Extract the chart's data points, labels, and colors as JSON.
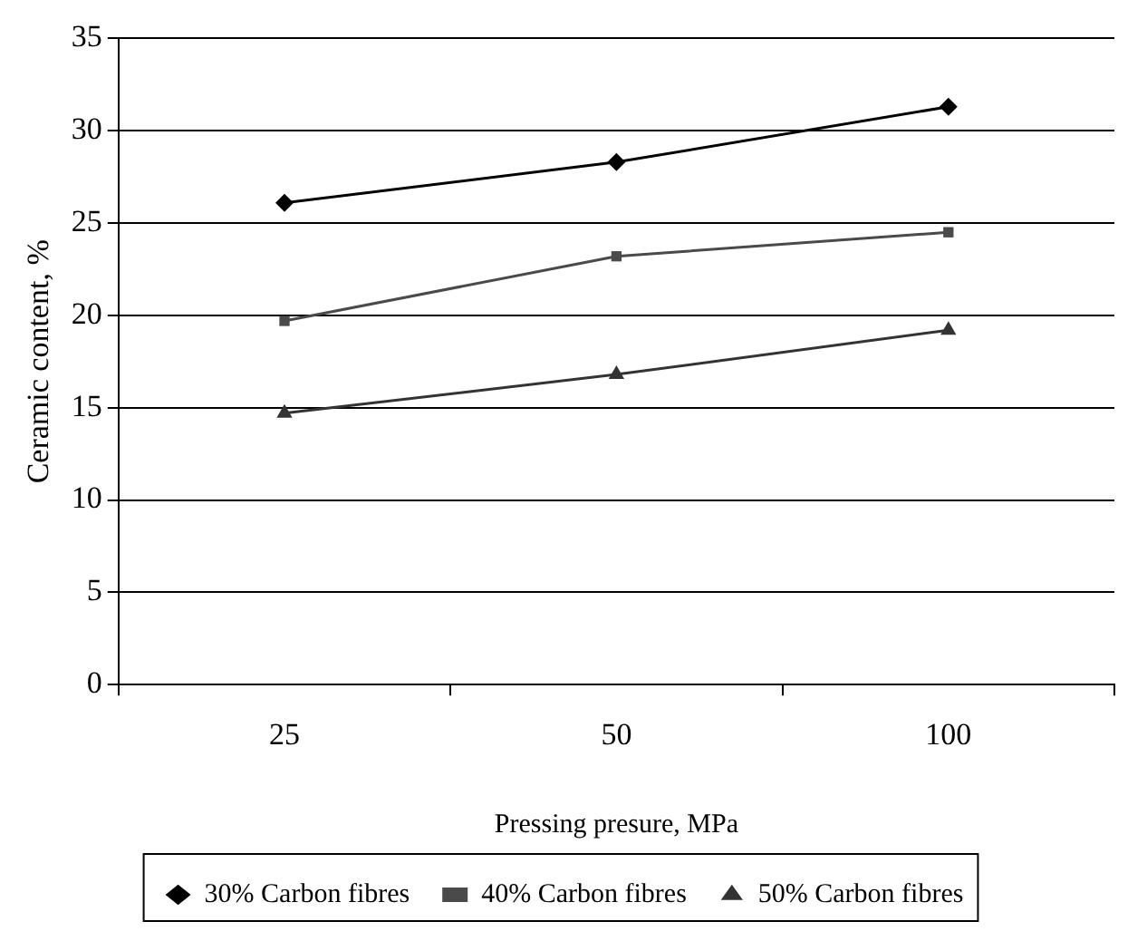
{
  "chart_data": {
    "type": "line",
    "xlabel": "Pressing presure, MPa",
    "ylabel": "Ceramic content, %",
    "categories": [
      "25",
      "50",
      "100"
    ],
    "series": [
      {
        "name": "30% Carbon fibres",
        "color": "#000000",
        "marker": "diamond",
        "values": [
          26.1,
          28.3,
          31.3
        ]
      },
      {
        "name": "40% Carbon fibres",
        "color": "#4a4a4a",
        "marker": "square",
        "values": [
          19.7,
          23.2,
          24.5
        ]
      },
      {
        "name": "50% Carbon fibres",
        "color": "#333333",
        "marker": "triangle",
        "values": [
          14.7,
          16.8,
          19.2
        ]
      }
    ],
    "ylim": [
      0,
      35
    ],
    "yticks": [
      0,
      5,
      10,
      15,
      20,
      25,
      30,
      35
    ],
    "grid": "y",
    "legend": "bottom",
    "line_style": "solid"
  }
}
